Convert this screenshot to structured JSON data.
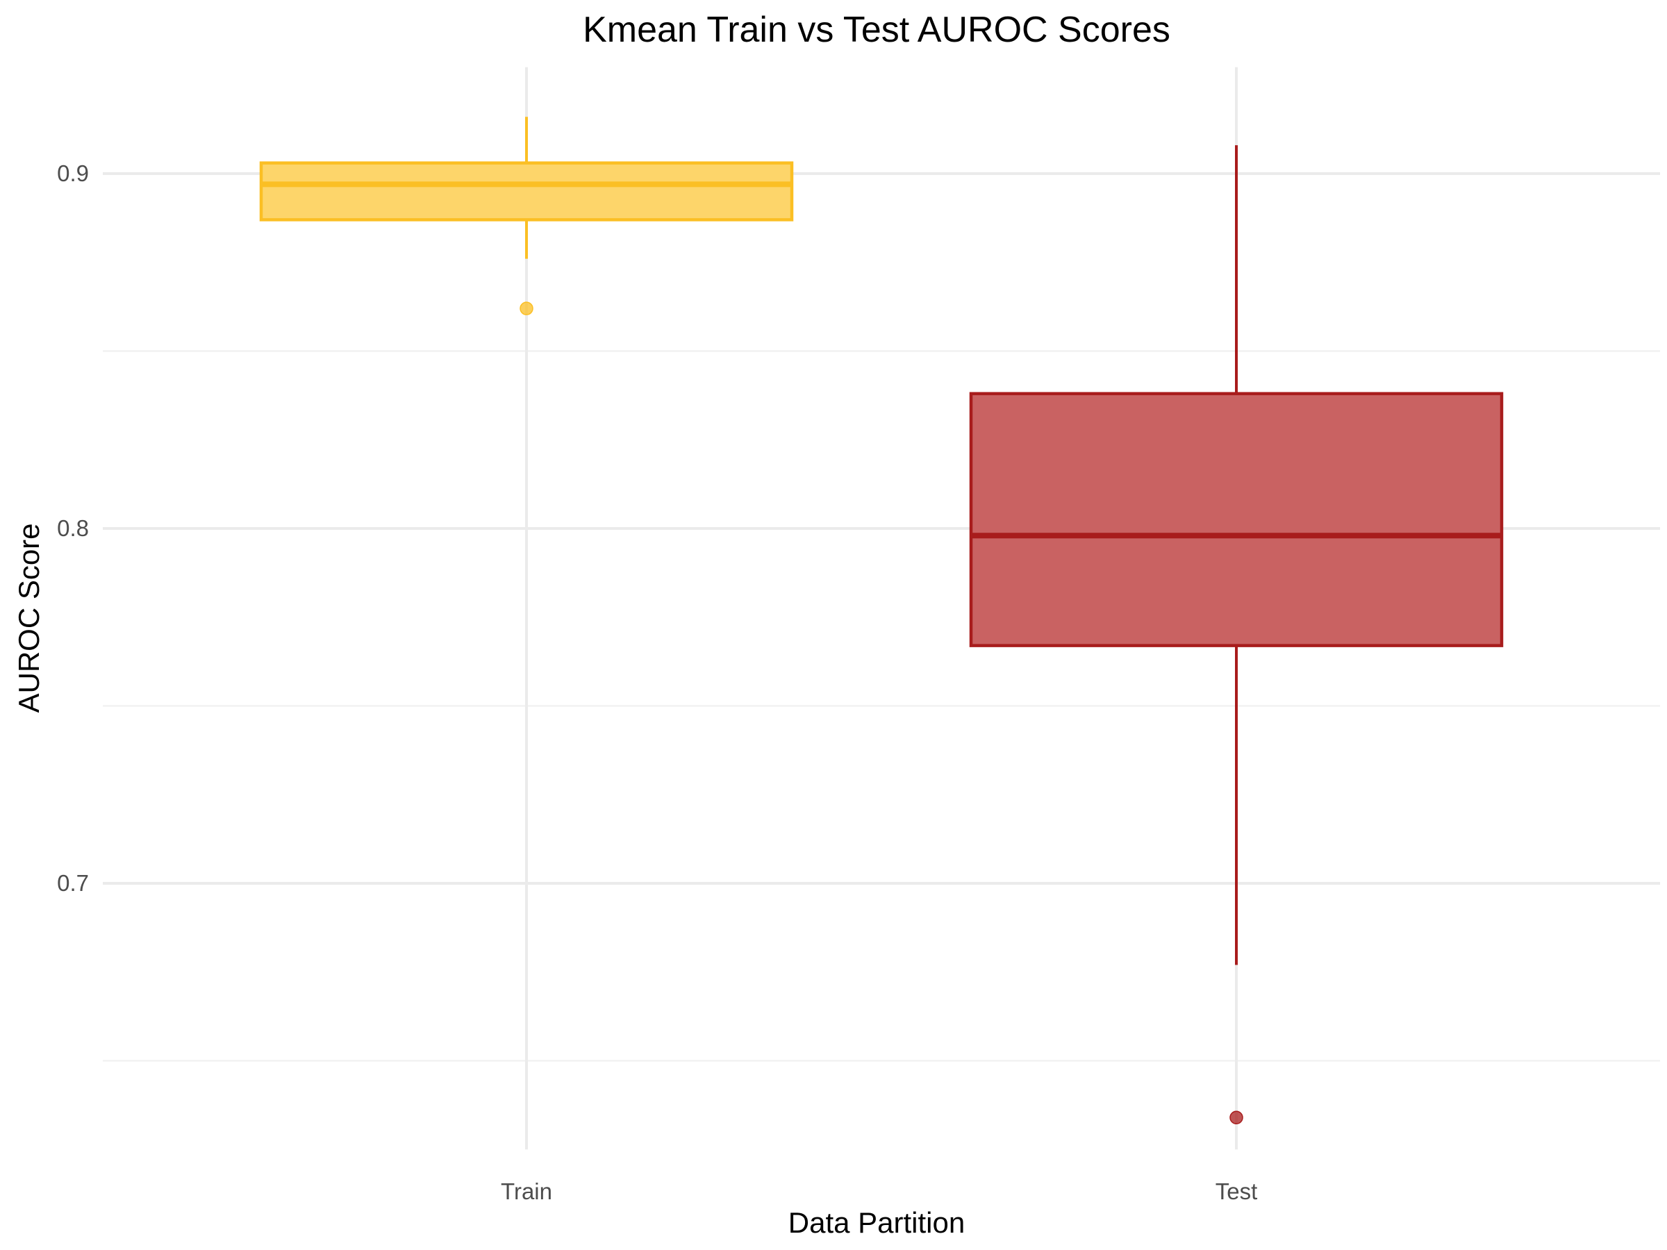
{
  "chart_data": {
    "type": "box",
    "title": "Kmean Train vs Test AUROC Scores",
    "xlabel": "Data Partition",
    "ylabel": "AUROC Score",
    "categories": [
      "Train",
      "Test"
    ],
    "ylim": [
      0.625,
      0.93
    ],
    "yticks": [
      0.7,
      0.8,
      0.9
    ],
    "ytick_labels": [
      "0.7",
      "0.8",
      "0.9"
    ],
    "minor_yticks": [
      0.65,
      0.75,
      0.85
    ],
    "grid": true,
    "legend": "none",
    "series": [
      {
        "category": "Train",
        "whisker_low": 0.876,
        "q1": 0.887,
        "median": 0.897,
        "q3": 0.903,
        "whisker_high": 0.916,
        "outliers": [
          0.862
        ],
        "color": "#FBBF24",
        "fill": "#FDD56A"
      },
      {
        "category": "Test",
        "whisker_low": 0.677,
        "q1": 0.767,
        "median": 0.798,
        "q3": 0.838,
        "whisker_high": 0.908,
        "outliers": [
          0.634
        ],
        "color": "#A81C1C",
        "fill": "#C96262"
      }
    ]
  }
}
